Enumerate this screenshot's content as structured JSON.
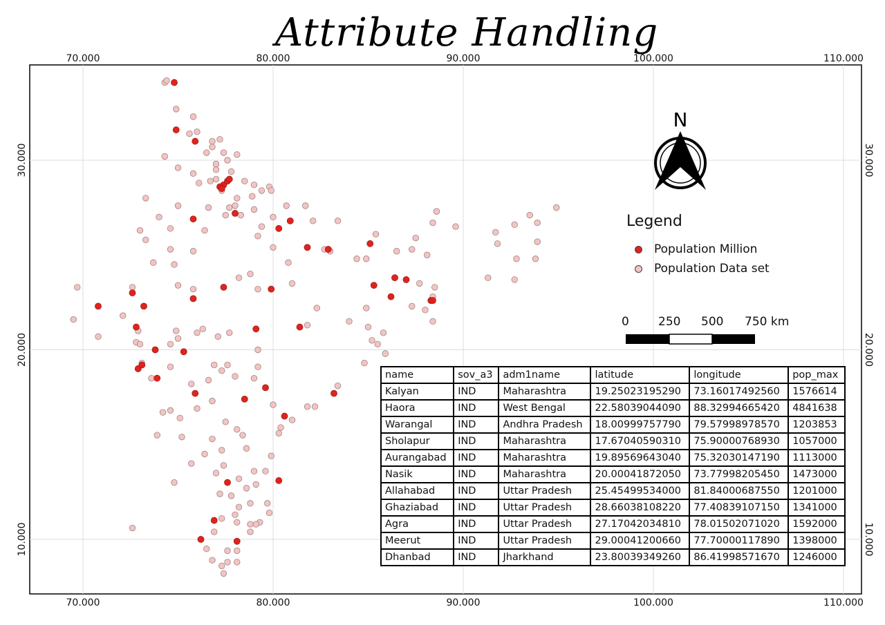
{
  "title": "Attribute Handling",
  "axes": {
    "x_ticks": [
      "70.000",
      "80.000",
      "90.000",
      "100.000",
      "110.000"
    ],
    "y_ticks": [
      "30.000",
      "20.000",
      "10.000"
    ]
  },
  "north_arrow": {
    "label": "N"
  },
  "legend": {
    "title": "Legend",
    "items": [
      {
        "label": "Population Million",
        "color": "#e0231c"
      },
      {
        "label": "Population Data set",
        "color": "#f4c4c2"
      }
    ]
  },
  "scale_bar": {
    "labels": [
      "0",
      "250",
      "500",
      "750 km"
    ]
  },
  "table": {
    "columns": [
      "name",
      "sov_a3",
      "adm1name",
      "latitude",
      "longitude",
      "pop_max"
    ],
    "rows": [
      [
        "Kalyan",
        "IND",
        "Maharashtra",
        "19.25023195290",
        "73.16017492560",
        "1576614"
      ],
      [
        "Haora",
        "IND",
        "West Bengal",
        "22.58039044090",
        "88.32994665420",
        "4841638"
      ],
      [
        "Warangal",
        "IND",
        "Andhra Pradesh",
        "18.00999757790",
        "79.57998978570",
        "1203853"
      ],
      [
        "Sholapur",
        "IND",
        "Maharashtra",
        "17.67040590310",
        "75.90000768930",
        "1057000"
      ],
      [
        "Aurangabad",
        "IND",
        "Maharashtra",
        "19.89569643040",
        "75.32030147190",
        "1113000"
      ],
      [
        "Nasik",
        "IND",
        "Maharashtra",
        "20.00041872050",
        "73.77998205450",
        "1473000"
      ],
      [
        "Allahabad",
        "IND",
        "Uttar Pradesh",
        "25.45499534000",
        "81.84000687550",
        "1201000"
      ],
      [
        "Ghaziabad",
        "IND",
        "Uttar Pradesh",
        "28.66038108220",
        "77.40839107150",
        "1341000"
      ],
      [
        "Agra",
        "IND",
        "Uttar Pradesh",
        "27.17042034810",
        "78.01502071020",
        "1592000"
      ],
      [
        "Meerut",
        "IND",
        "Uttar Pradesh",
        "29.00041200660",
        "77.70000117890",
        "1398000"
      ],
      [
        "Dhanbad",
        "IND",
        "Jharkhand",
        "23.80039349260",
        "86.41998571670",
        "1246000"
      ]
    ]
  },
  "map_points": {
    "million": [
      [
        74.8,
        34.1
      ],
      [
        74.9,
        31.6
      ],
      [
        75.9,
        31.0
      ],
      [
        77.4,
        28.7
      ],
      [
        77.2,
        28.6
      ],
      [
        77.3,
        28.5
      ],
      [
        77.6,
        28.9
      ],
      [
        77.7,
        29.0
      ],
      [
        75.8,
        26.9
      ],
      [
        78.0,
        27.2
      ],
      [
        80.3,
        26.4
      ],
      [
        80.9,
        26.8
      ],
      [
        81.8,
        25.4
      ],
      [
        82.9,
        25.3
      ],
      [
        85.1,
        25.6
      ],
      [
        85.3,
        23.4
      ],
      [
        86.4,
        23.8
      ],
      [
        87.0,
        23.7
      ],
      [
        86.2,
        22.8
      ],
      [
        88.3,
        22.6
      ],
      [
        88.4,
        22.6
      ],
      [
        77.4,
        23.3
      ],
      [
        79.9,
        23.2
      ],
      [
        72.6,
        23.0
      ],
      [
        70.8,
        22.3
      ],
      [
        73.2,
        22.3
      ],
      [
        75.8,
        22.7
      ],
      [
        72.8,
        21.2
      ],
      [
        79.1,
        21.1
      ],
      [
        81.4,
        21.2
      ],
      [
        73.8,
        20.0
      ],
      [
        75.3,
        19.9
      ],
      [
        72.9,
        19.0
      ],
      [
        73.1,
        19.2
      ],
      [
        73.9,
        18.5
      ],
      [
        75.9,
        17.7
      ],
      [
        78.5,
        17.4
      ],
      [
        79.6,
        18.0
      ],
      [
        80.6,
        16.5
      ],
      [
        83.2,
        17.7
      ],
      [
        77.6,
        13.0
      ],
      [
        80.3,
        13.1
      ],
      [
        76.9,
        11.0
      ],
      [
        76.2,
        10.0
      ],
      [
        78.1,
        9.9
      ]
    ],
    "dataset": [
      [
        74.3,
        34.1
      ],
      [
        74.4,
        34.2
      ],
      [
        74.9,
        32.7
      ],
      [
        75.8,
        32.3
      ],
      [
        75.6,
        31.4
      ],
      [
        76.0,
        31.5
      ],
      [
        77.2,
        31.1
      ],
      [
        76.8,
        30.7
      ],
      [
        76.8,
        31.0
      ],
      [
        77.4,
        30.4
      ],
      [
        78.1,
        30.3
      ],
      [
        77.6,
        30.0
      ],
      [
        74.3,
        30.2
      ],
      [
        76.5,
        30.4
      ],
      [
        77.0,
        29.8
      ],
      [
        77.0,
        29.5
      ],
      [
        75.0,
        29.6
      ],
      [
        75.8,
        29.3
      ],
      [
        77.0,
        29.0
      ],
      [
        77.8,
        29.4
      ],
      [
        78.5,
        28.9
      ],
      [
        79.0,
        28.7
      ],
      [
        79.4,
        28.4
      ],
      [
        79.8,
        28.6
      ],
      [
        76.1,
        28.8
      ],
      [
        76.7,
        28.9
      ],
      [
        77.3,
        28.4
      ],
      [
        78.1,
        28.0
      ],
      [
        78.9,
        28.1
      ],
      [
        79.9,
        28.4
      ],
      [
        73.3,
        28.0
      ],
      [
        75.0,
        27.6
      ],
      [
        76.6,
        27.5
      ],
      [
        77.7,
        27.5
      ],
      [
        78.3,
        27.1
      ],
      [
        79.0,
        27.4
      ],
      [
        78.0,
        27.6
      ],
      [
        77.5,
        27.1
      ],
      [
        76.4,
        26.3
      ],
      [
        79.4,
        26.5
      ],
      [
        80.0,
        27.0
      ],
      [
        80.7,
        27.6
      ],
      [
        81.7,
        27.6
      ],
      [
        82.1,
        26.8
      ],
      [
        83.4,
        26.8
      ],
      [
        82.7,
        25.3
      ],
      [
        83.0,
        25.2
      ],
      [
        84.4,
        24.8
      ],
      [
        84.9,
        24.8
      ],
      [
        85.4,
        26.1
      ],
      [
        86.5,
        25.2
      ],
      [
        87.3,
        25.3
      ],
      [
        87.5,
        25.9
      ],
      [
        88.1,
        25.0
      ],
      [
        88.4,
        26.7
      ],
      [
        88.6,
        27.3
      ],
      [
        89.6,
        26.5
      ],
      [
        91.7,
        26.2
      ],
      [
        91.8,
        25.6
      ],
      [
        92.7,
        26.6
      ],
      [
        93.5,
        27.1
      ],
      [
        93.9,
        26.7
      ],
      [
        94.9,
        27.5
      ],
      [
        92.8,
        24.8
      ],
      [
        93.8,
        24.8
      ],
      [
        93.9,
        25.7
      ],
      [
        91.3,
        23.8
      ],
      [
        92.7,
        23.7
      ],
      [
        73.0,
        26.3
      ],
      [
        73.3,
        25.8
      ],
      [
        74.6,
        26.4
      ],
      [
        74.6,
        25.3
      ],
      [
        75.8,
        25.2
      ],
      [
        74.8,
        24.5
      ],
      [
        73.7,
        24.6
      ],
      [
        74.0,
        27.0
      ],
      [
        75.0,
        23.4
      ],
      [
        75.8,
        23.2
      ],
      [
        79.2,
        23.2
      ],
      [
        78.2,
        23.8
      ],
      [
        78.8,
        24.0
      ],
      [
        79.2,
        26.0
      ],
      [
        80.0,
        25.4
      ],
      [
        80.8,
        24.6
      ],
      [
        81.0,
        23.5
      ],
      [
        82.3,
        22.2
      ],
      [
        81.8,
        21.3
      ],
      [
        84.0,
        21.5
      ],
      [
        84.9,
        22.2
      ],
      [
        85.8,
        20.9
      ],
      [
        85.0,
        21.2
      ],
      [
        85.2,
        20.5
      ],
      [
        85.5,
        20.3
      ],
      [
        84.8,
        19.3
      ],
      [
        85.9,
        19.8
      ],
      [
        87.7,
        23.5
      ],
      [
        87.3,
        22.3
      ],
      [
        88.0,
        22.1
      ],
      [
        88.4,
        22.8
      ],
      [
        88.5,
        23.3
      ],
      [
        88.4,
        21.5
      ],
      [
        69.7,
        23.3
      ],
      [
        69.5,
        21.6
      ],
      [
        70.8,
        20.7
      ],
      [
        72.1,
        21.8
      ],
      [
        72.6,
        23.3
      ],
      [
        72.9,
        21.0
      ],
      [
        72.8,
        20.4
      ],
      [
        73.0,
        20.3
      ],
      [
        73.1,
        19.3
      ],
      [
        73.6,
        18.5
      ],
      [
        74.6,
        19.1
      ],
      [
        74.6,
        20.3
      ],
      [
        74.9,
        21.0
      ],
      [
        75.0,
        20.6
      ],
      [
        76.0,
        20.9
      ],
      [
        76.3,
        21.1
      ],
      [
        77.1,
        20.7
      ],
      [
        77.7,
        20.9
      ],
      [
        76.9,
        19.2
      ],
      [
        77.3,
        18.9
      ],
      [
        77.6,
        19.2
      ],
      [
        78.0,
        18.6
      ],
      [
        79.0,
        18.5
      ],
      [
        79.2,
        19.1
      ],
      [
        79.2,
        20.0
      ],
      [
        76.6,
        18.4
      ],
      [
        75.7,
        18.2
      ],
      [
        74.6,
        16.8
      ],
      [
        74.2,
        16.7
      ],
      [
        75.1,
        16.4
      ],
      [
        73.9,
        15.5
      ],
      [
        75.2,
        15.4
      ],
      [
        76.0,
        16.9
      ],
      [
        76.8,
        17.3
      ],
      [
        76.8,
        15.3
      ],
      [
        77.5,
        16.2
      ],
      [
        78.1,
        15.8
      ],
      [
        78.4,
        15.5
      ],
      [
        78.6,
        14.8
      ],
      [
        77.3,
        14.7
      ],
      [
        76.4,
        14.5
      ],
      [
        75.7,
        14.0
      ],
      [
        74.8,
        13.0
      ],
      [
        77.0,
        13.5
      ],
      [
        77.4,
        13.9
      ],
      [
        77.2,
        12.4
      ],
      [
        77.8,
        12.3
      ],
      [
        78.2,
        13.2
      ],
      [
        79.1,
        12.9
      ],
      [
        79.6,
        13.6
      ],
      [
        79.9,
        14.4
      ],
      [
        80.3,
        15.6
      ],
      [
        80.4,
        15.9
      ],
      [
        81.0,
        16.3
      ],
      [
        81.8,
        17.0
      ],
      [
        82.2,
        17.0
      ],
      [
        83.4,
        18.1
      ],
      [
        80.0,
        17.1
      ],
      [
        79.0,
        13.6
      ],
      [
        78.8,
        11.9
      ],
      [
        78.6,
        12.7
      ],
      [
        79.7,
        11.9
      ],
      [
        79.8,
        11.4
      ],
      [
        79.3,
        10.9
      ],
      [
        79.1,
        10.8
      ],
      [
        78.8,
        10.8
      ],
      [
        78.1,
        10.9
      ],
      [
        78.2,
        11.7
      ],
      [
        78.0,
        11.3
      ],
      [
        77.3,
        11.1
      ],
      [
        76.9,
        10.4
      ],
      [
        76.5,
        9.5
      ],
      [
        76.8,
        8.9
      ],
      [
        77.4,
        8.2
      ],
      [
        77.6,
        8.8
      ],
      [
        78.1,
        8.8
      ],
      [
        77.6,
        9.4
      ],
      [
        78.1,
        9.4
      ],
      [
        78.8,
        10.4
      ],
      [
        77.3,
        8.6
      ],
      [
        72.6,
        10.6
      ]
    ]
  }
}
